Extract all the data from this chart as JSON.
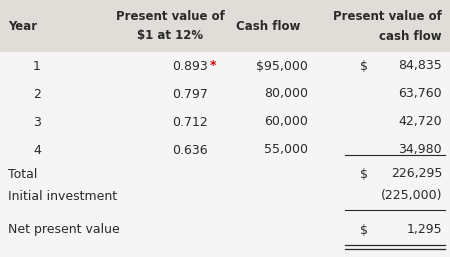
{
  "header_bg": "#e0dcd8",
  "body_bg": "#f5f5f5",
  "text_color": "#2a2a2a",
  "star_color": "#cc0000",
  "header_fontsize": 8.5,
  "body_fontsize": 9.0,
  "rows": [
    [
      "1",
      "0.893",
      "*",
      "$95,000",
      "$",
      "84,835"
    ],
    [
      "2",
      "0.797",
      "",
      "80,000",
      "",
      "63,760"
    ],
    [
      "3",
      "0.712",
      "",
      "60,000",
      "",
      "42,720"
    ],
    [
      "4",
      "0.636",
      "",
      "55,000",
      "",
      "34,980"
    ]
  ],
  "total_label": "Total",
  "total_dollar": "$",
  "total_value": "226,295",
  "invest_label": "Initial investment",
  "invest_value": "(225,000)",
  "npv_label": "Net present value",
  "npv_dollar": "$",
  "npv_value": "1,295"
}
